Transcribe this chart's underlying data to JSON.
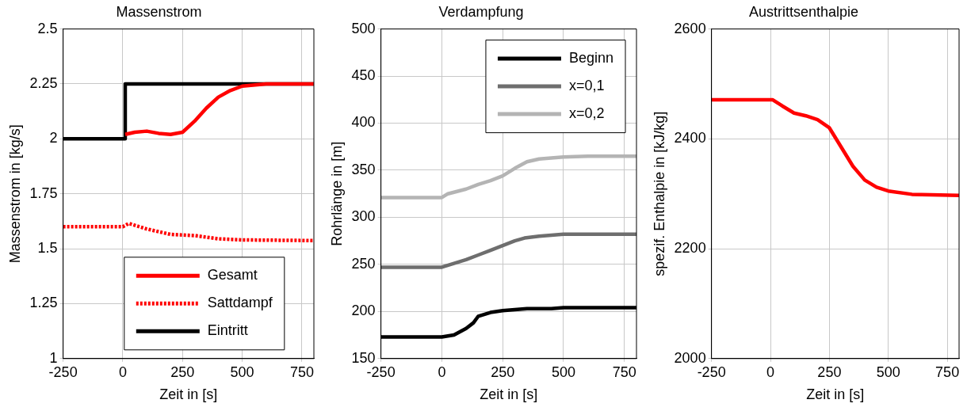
{
  "chart_data": [
    {
      "type": "line",
      "title": "Massenstrom",
      "xlabel": "Zeit in [s]",
      "ylabel": "Massenstrom in [kg/s]",
      "xlim": [
        -250,
        800
      ],
      "xticks": [
        -250,
        0,
        250,
        500,
        750
      ],
      "ylim": [
        1,
        2.5
      ],
      "yticks": [
        1,
        1.25,
        1.5,
        1.75,
        2,
        2.25,
        2.5
      ],
      "grid": true,
      "legend": "bottom",
      "series": [
        {
          "name": "Gesamt",
          "color": "#ff0000",
          "x": [
            10,
            50,
            100,
            150,
            200,
            250,
            300,
            350,
            400,
            450,
            500,
            600,
            700,
            800
          ],
          "values": [
            2.02,
            2.03,
            2.035,
            2.025,
            2.02,
            2.03,
            2.08,
            2.14,
            2.19,
            2.22,
            2.24,
            2.25,
            2.25,
            2.25
          ]
        },
        {
          "name": "Sattdampf",
          "color": "#ff0000",
          "line_style": "dotted",
          "x": [
            -250,
            0,
            25,
            100,
            200,
            300,
            400,
            500,
            800
          ],
          "values": [
            1.6,
            1.6,
            1.615,
            1.59,
            1.565,
            1.56,
            1.545,
            1.54,
            1.537
          ]
        },
        {
          "name": "Eintritt",
          "color": "#000000",
          "x": [
            -250,
            10,
            10,
            800
          ],
          "values": [
            2,
            2,
            2.25,
            2.25
          ]
        }
      ]
    },
    {
      "type": "line",
      "title": "Verdampfung",
      "xlabel": "Zeit in [s]",
      "ylabel": "Rohrlänge in [m]",
      "xlim": [
        -250,
        800
      ],
      "xticks": [
        -250,
        0,
        250,
        500,
        750
      ],
      "ylim": [
        150,
        500
      ],
      "yticks": [
        150,
        200,
        250,
        300,
        350,
        400,
        450,
        500
      ],
      "grid": true,
      "legend": "top right",
      "series": [
        {
          "name": "Beginn",
          "color": "#000000",
          "x": [
            -250,
            0,
            50,
            100,
            130,
            150,
            200,
            250,
            300,
            350,
            450,
            500,
            800
          ],
          "values": [
            173,
            173,
            175,
            182,
            188,
            195,
            199,
            201,
            202,
            203,
            203,
            204,
            204
          ]
        },
        {
          "name": "x=0,1",
          "color": "#6e6e6e",
          "x": [
            -250,
            0,
            50,
            100,
            150,
            200,
            250,
            300,
            340,
            400,
            500,
            800
          ],
          "values": [
            247,
            247,
            251,
            255,
            260,
            265,
            270,
            275,
            278,
            280,
            282,
            282
          ]
        },
        {
          "name": "x=0,2",
          "color": "#b4b4b4",
          "x": [
            -250,
            0,
            25,
            100,
            150,
            200,
            250,
            300,
            350,
            400,
            500,
            600,
            800
          ],
          "values": [
            321,
            321,
            325,
            330,
            335,
            339,
            344,
            352,
            359,
            362,
            364,
            365,
            365
          ]
        }
      ]
    },
    {
      "type": "line",
      "title": "Austrittsenthalpie",
      "xlabel": "Zeit in [s]",
      "ylabel": "spezif. Enthalpie in [kJ/kg]",
      "xlim": [
        -250,
        800
      ],
      "xticks": [
        -250,
        0,
        250,
        500,
        750
      ],
      "ylim": [
        2000,
        2600
      ],
      "yticks": [
        2000,
        2200,
        2400,
        2600
      ],
      "grid": true,
      "series": [
        {
          "color": "#ff0000",
          "x": [
            -250,
            10,
            50,
            100,
            150,
            200,
            250,
            300,
            350,
            400,
            450,
            500,
            600,
            800
          ],
          "values": [
            2471,
            2471,
            2460,
            2447,
            2442,
            2435,
            2420,
            2385,
            2350,
            2325,
            2312,
            2305,
            2299,
            2297
          ]
        }
      ]
    }
  ]
}
